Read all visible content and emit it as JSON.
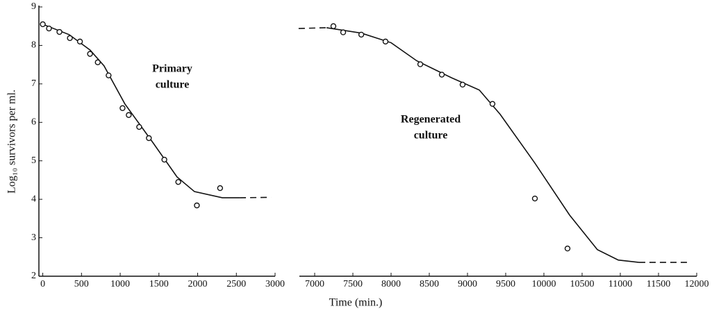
{
  "chart_data": [
    {
      "type": "scatter",
      "ylabel": "Log₁₀ survivors per ml.",
      "xlabel": "Time (min.)",
      "annotation": [
        "Primary",
        "culture"
      ],
      "xlim": [
        -50,
        3000
      ],
      "xticks": [
        0,
        500,
        1000,
        1500,
        2000,
        2500,
        3000
      ],
      "ylim": [
        2,
        9
      ],
      "yticks": [
        2,
        3,
        4,
        5,
        6,
        7,
        8,
        9
      ],
      "color": "#111111",
      "x": [
        0,
        80,
        215,
        350,
        480,
        610,
        710,
        850,
        1030,
        1110,
        1245,
        1370,
        1570,
        1750,
        1990,
        2290
      ],
      "values": [
        8.55,
        8.44,
        8.35,
        8.19,
        8.1,
        7.78,
        7.56,
        7.22,
        6.37,
        6.19,
        5.88,
        5.59,
        5.03,
        4.45,
        3.84,
        4.29
      ],
      "lines": [
        {
          "dash": false,
          "x": [
            0,
            341,
            611,
            791,
            1060,
            1420,
            1734,
            1959,
            2318,
            2543
          ],
          "values": [
            8.55,
            8.28,
            7.88,
            7.47,
            6.48,
            5.48,
            4.58,
            4.2,
            4.04,
            4.04
          ]
        },
        {
          "dash": true,
          "x": [
            2543,
            2947
          ],
          "values": [
            4.04,
            4.05
          ]
        }
      ]
    },
    {
      "type": "scatter",
      "annotation": [
        "Regenerated",
        "culture"
      ],
      "xlim": [
        6800,
        12000
      ],
      "xticks": [
        7000,
        7500,
        8000,
        8500,
        9000,
        9500,
        10000,
        10500,
        11000,
        11500,
        12000
      ],
      "ylim": [
        2,
        9
      ],
      "color": "#111111",
      "x": [
        7245,
        7373,
        7610,
        7927,
        8382,
        8664,
        8936,
        9327,
        9882,
        10309
      ],
      "values": [
        8.5,
        8.34,
        8.28,
        8.1,
        7.51,
        7.24,
        6.98,
        6.48,
        4.02,
        2.72
      ],
      "lines": [
        {
          "dash": true,
          "x": [
            6790,
            7155
          ],
          "values": [
            8.44,
            8.46
          ]
        },
        {
          "dash": false,
          "x": [
            7155,
            7610,
            8000,
            8336,
            8790,
            9155,
            9427,
            9882,
            10336,
            10700,
            10973,
            11245
          ],
          "values": [
            8.46,
            8.32,
            8.07,
            7.6,
            7.16,
            6.84,
            6.21,
            4.94,
            3.59,
            2.69,
            2.42,
            2.36
          ]
        },
        {
          "dash": true,
          "x": [
            11245,
            11882
          ],
          "values": [
            2.36,
            2.36
          ]
        }
      ]
    }
  ]
}
